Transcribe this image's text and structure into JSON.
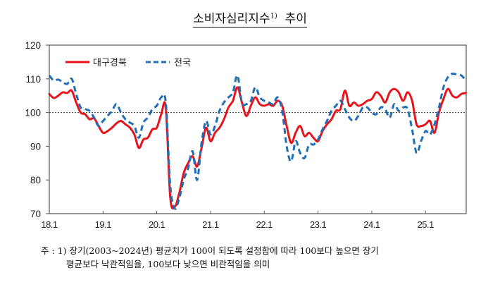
{
  "title": {
    "text": "소비자심리지수",
    "footnote_mark": "1)",
    "suffix": "추이"
  },
  "legend": {
    "series1": "대구경북",
    "series2": "전국"
  },
  "note": {
    "line1": "주 : 1) 장기(2003~2024년) 평균치가 100이 되도록 설정함에 따라 100보다 높으면 장기",
    "line2": "평균보다 낙관적임을, 100보다 낮으면 비관적임을 의미"
  },
  "colors": {
    "daegu": "#e8141c",
    "national": "#1f6fb8",
    "baseline": "#333333",
    "axis": "#555555"
  },
  "chart_data": {
    "type": "line",
    "title": "소비자심리지수 추이",
    "xlabel": "",
    "ylabel": "",
    "ylim": [
      70,
      120
    ],
    "yticks": [
      70,
      80,
      90,
      100,
      110,
      120
    ],
    "xticks": [
      "18.1",
      "19.1",
      "20.1",
      "21.1",
      "22.1",
      "23.1",
      "24.1",
      "25.1"
    ],
    "reference_line": 100,
    "legend_position": "top-left",
    "grid": false,
    "x_start": "2018.01",
    "x_end": "2025.10",
    "series": [
      {
        "name": "대구경북",
        "style": "solid",
        "values": [
          105.5,
          104.3,
          105.0,
          106.0,
          105.8,
          106.5,
          103.0,
          100.0,
          99.5,
          98.0,
          98.3,
          96.0,
          94.0,
          94.5,
          95.5,
          96.8,
          97.5,
          96.5,
          95.5,
          93.5,
          89.5,
          92.0,
          92.5,
          95.0,
          95.5,
          99.5,
          101.5,
          75.0,
          72.0,
          76.0,
          82.0,
          85.0,
          87.0,
          84.0,
          89.5,
          95.5,
          91.5,
          94.0,
          95.5,
          98.0,
          101.5,
          103.5,
          107.5,
          103.0,
          99.0,
          102.0,
          104.5,
          102.5,
          102.0,
          102.5,
          102.0,
          103.5,
          102.0,
          96.0,
          91.0,
          94.0,
          96.0,
          93.0,
          94.0,
          92.5,
          91.5,
          94.5,
          96.5,
          98.0,
          100.5,
          101.0,
          106.5,
          102.0,
          103.0,
          102.0,
          102.5,
          103.5,
          104.0,
          106.0,
          105.0,
          103.0,
          106.0,
          107.0,
          106.0,
          103.5,
          106.0,
          103.5,
          96.5,
          96.0,
          96.5,
          97.5,
          94.0,
          100.0,
          104.0,
          107.0,
          105.0,
          104.5,
          105.5,
          105.8
        ]
      },
      {
        "name": "전국",
        "style": "dashed",
        "values": [
          111.0,
          109.5,
          109.8,
          109.0,
          108.5,
          110.0,
          105.5,
          101.5,
          101.0,
          100.5,
          98.5,
          96.0,
          97.5,
          99.0,
          100.5,
          102.5,
          100.0,
          98.0,
          97.0,
          96.0,
          92.5,
          97.0,
          98.5,
          101.0,
          102.0,
          104.5,
          103.0,
          78.5,
          71.5,
          74.5,
          80.0,
          83.5,
          88.5,
          80.0,
          91.0,
          97.5,
          93.5,
          96.0,
          100.5,
          103.0,
          104.5,
          106.0,
          111.0,
          103.0,
          102.5,
          103.5,
          107.5,
          104.5,
          103.5,
          103.0,
          102.5,
          104.5,
          100.5,
          90.0,
          85.5,
          91.5,
          88.0,
          86.5,
          90.5,
          90.5,
          92.0,
          95.0,
          97.5,
          100.5,
          102.0,
          103.5,
          101.0,
          98.5,
          97.5,
          99.0,
          101.5,
          101.5,
          100.0,
          99.5,
          101.5,
          101.0,
          98.5,
          102.5,
          100.5,
          101.5,
          101.0,
          95.0,
          88.0,
          91.5,
          94.5,
          93.5,
          96.5,
          101.5,
          107.5,
          110.5,
          111.5,
          111.3,
          111.0,
          109.5
        ]
      }
    ]
  }
}
